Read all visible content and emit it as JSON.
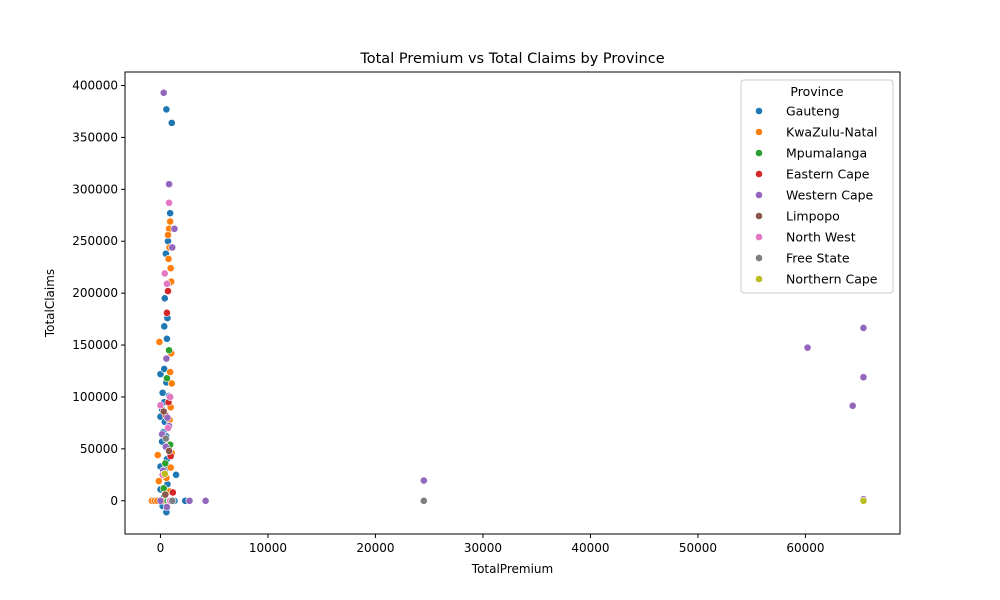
{
  "chart_data": {
    "type": "scatter",
    "title": "Total Premium vs Total Claims by Province",
    "xlabel": "TotalPremium",
    "ylabel": "TotalClaims",
    "xlim": [
      -3300,
      68800
    ],
    "ylim": [
      -32000,
      413000
    ],
    "xticks": [
      0,
      10000,
      20000,
      30000,
      40000,
      50000,
      60000
    ],
    "yticks": [
      0,
      50000,
      100000,
      150000,
      200000,
      250000,
      300000,
      350000,
      400000
    ],
    "grid": false,
    "legend": {
      "title": "Province",
      "position": "top-right"
    },
    "series": [
      {
        "name": "Gauteng",
        "color": "#1f77b4",
        "points": [
          [
            550,
            377000
          ],
          [
            1050,
            364000
          ],
          [
            900,
            277000
          ],
          [
            700,
            250000
          ],
          [
            500,
            238000
          ],
          [
            900,
            210000
          ],
          [
            400,
            195000
          ],
          [
            650,
            176000
          ],
          [
            350,
            168000
          ],
          [
            600,
            156000
          ],
          [
            0,
            122000
          ],
          [
            350,
            127000
          ],
          [
            550,
            114000
          ],
          [
            200,
            104000
          ],
          [
            800,
            101000
          ],
          [
            350,
            95000
          ],
          [
            150,
            88000
          ],
          [
            0,
            81000
          ],
          [
            400,
            76000
          ],
          [
            250,
            66000
          ],
          [
            550,
            62000
          ],
          [
            150,
            57000
          ],
          [
            600,
            40000
          ],
          [
            0,
            33000
          ],
          [
            400,
            30000
          ],
          [
            1450,
            25000
          ],
          [
            650,
            16000
          ],
          [
            0,
            11000
          ],
          [
            350,
            4000
          ],
          [
            100,
            0
          ],
          [
            500,
            0
          ],
          [
            900,
            0
          ],
          [
            1300,
            0
          ],
          [
            2300,
            0
          ],
          [
            200,
            -5000
          ],
          [
            550,
            -11000
          ]
        ]
      },
      {
        "name": "KwaZulu-Natal",
        "color": "#ff7f0e",
        "points": [
          [
            900,
            269000
          ],
          [
            800,
            262000
          ],
          [
            700,
            256000
          ],
          [
            850,
            244000
          ],
          [
            750,
            233000
          ],
          [
            950,
            224000
          ],
          [
            1000,
            211000
          ],
          [
            -100,
            153000
          ],
          [
            1000,
            142000
          ],
          [
            900,
            124000
          ],
          [
            1050,
            113000
          ],
          [
            950,
            90000
          ],
          [
            850,
            78000
          ],
          [
            1050,
            46000
          ],
          [
            -250,
            44000
          ],
          [
            950,
            32000
          ],
          [
            550,
            22000
          ],
          [
            -150,
            19000
          ],
          [
            850,
            9000
          ],
          [
            -800,
            0
          ],
          [
            -550,
            0
          ],
          [
            -300,
            0
          ],
          [
            200,
            0
          ],
          [
            700,
            0
          ]
        ]
      },
      {
        "name": "Mpumalanga",
        "color": "#2ca02c",
        "points": [
          [
            800,
            145000
          ],
          [
            600,
            118000
          ],
          [
            900,
            54000
          ],
          [
            450,
            36000
          ],
          [
            300,
            12000
          ],
          [
            650,
            0
          ]
        ]
      },
      {
        "name": "Eastern Cape",
        "color": "#d62728",
        "points": [
          [
            700,
            202000
          ],
          [
            600,
            181000
          ],
          [
            750,
            95000
          ],
          [
            500,
            82000
          ],
          [
            950,
            43000
          ],
          [
            1150,
            8000
          ],
          [
            850,
            0
          ]
        ]
      },
      {
        "name": "Western Cape",
        "color": "#9467bd",
        "points": [
          [
            300,
            393000
          ],
          [
            800,
            305000
          ],
          [
            1300,
            262000
          ],
          [
            1100,
            244000
          ],
          [
            550,
            137000
          ],
          [
            650,
            80000
          ],
          [
            800,
            72000
          ],
          [
            150,
            64000
          ],
          [
            500,
            52000
          ],
          [
            250,
            29000
          ],
          [
            600,
            -6000
          ],
          [
            0,
            0
          ],
          [
            1100,
            0
          ],
          [
            2700,
            0
          ],
          [
            4200,
            0
          ],
          [
            24500,
            19500
          ],
          [
            24500,
            0
          ],
          [
            60200,
            147500
          ],
          [
            65400,
            166500
          ],
          [
            65400,
            119000
          ],
          [
            64400,
            91500
          ],
          [
            65400,
            1500
          ]
        ]
      },
      {
        "name": "Limpopo",
        "color": "#8c564b",
        "points": [
          [
            300,
            86000
          ],
          [
            800,
            48000
          ],
          [
            450,
            6000
          ],
          [
            1000,
            0
          ]
        ]
      },
      {
        "name": "North West",
        "color": "#e377c2",
        "points": [
          [
            800,
            287000
          ],
          [
            400,
            219000
          ],
          [
            600,
            209000
          ],
          [
            900,
            100000
          ],
          [
            0,
            92000
          ],
          [
            700,
            70000
          ],
          [
            200,
            25000
          ],
          [
            900,
            0
          ]
        ]
      },
      {
        "name": "Free State",
        "color": "#7f7f7f",
        "points": [
          [
            500,
            60000
          ],
          [
            1100,
            0
          ],
          [
            24500,
            0
          ]
        ]
      },
      {
        "name": "Northern Cape",
        "color": "#bcbd22",
        "points": [
          [
            400,
            26000
          ],
          [
            65400,
            0
          ]
        ]
      }
    ]
  }
}
